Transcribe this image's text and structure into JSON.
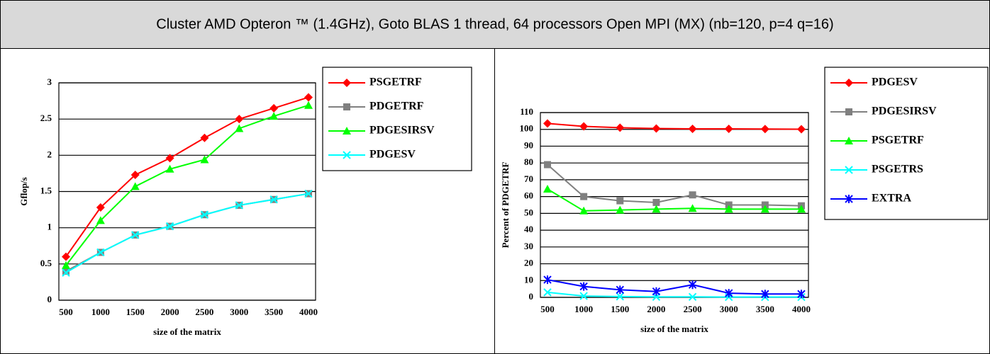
{
  "title": "Cluster AMD Opteron ™ (1.4GHz), Goto BLAS 1 thread, 64 processors Open MPI (MX) (nb=120, p=4 q=16)",
  "chart_data": [
    {
      "type": "line",
      "xlabel": "size of the matrix",
      "ylabel": "Gflop/s",
      "categories": [
        "500",
        "1000",
        "1500",
        "2000",
        "2500",
        "3000",
        "3500",
        "4000"
      ],
      "series": [
        {
          "name": "PSGETRF",
          "color": "#ff0000",
          "marker": "diamond",
          "values": [
            0.6,
            1.28,
            1.73,
            1.96,
            2.24,
            2.5,
            2.65,
            2.8
          ]
        },
        {
          "name": "PDGETRF",
          "color": "#808080",
          "marker": "square",
          "values": [
            0.4,
            0.66,
            0.9,
            1.02,
            1.18,
            1.31,
            1.39,
            1.47
          ]
        },
        {
          "name": "PDGESIRSV",
          "color": "#00ff00",
          "marker": "triangle",
          "values": [
            0.48,
            1.1,
            1.57,
            1.81,
            1.94,
            2.37,
            2.54,
            2.69
          ]
        },
        {
          "name": "PDGESV",
          "color": "#00ffff",
          "marker": "x",
          "values": [
            0.38,
            0.66,
            0.9,
            1.02,
            1.18,
            1.31,
            1.39,
            1.47
          ]
        }
      ],
      "ylim": [
        0,
        3
      ],
      "yticks": [
        0,
        0.5,
        1,
        1.5,
        2,
        2.5,
        3
      ],
      "grid": true,
      "legend": "right"
    },
    {
      "type": "line",
      "xlabel": "size of the matrix",
      "ylabel": "Percent of PDGETRF",
      "categories": [
        "500",
        "1000",
        "1500",
        "2000",
        "2500",
        "3000",
        "3500",
        "4000"
      ],
      "series": [
        {
          "name": "PDGESV",
          "color": "#ff0000",
          "marker": "diamond",
          "values": [
            103.5,
            101.8,
            101,
            100.5,
            100.3,
            100.3,
            100.2,
            100.1
          ]
        },
        {
          "name": "PDGESIRSV",
          "color": "#808080",
          "marker": "square",
          "values": [
            79,
            60,
            57.5,
            56.5,
            61,
            55,
            55,
            54.5
          ]
        },
        {
          "name": "PSGETRF",
          "color": "#00ff00",
          "marker": "triangle",
          "values": [
            64.5,
            51.5,
            52,
            52.5,
            53,
            52.5,
            52.5,
            52.5
          ]
        },
        {
          "name": "PSGETRS",
          "color": "#00ffff",
          "marker": "x",
          "values": [
            3,
            0.8,
            0.5,
            0.3,
            0.3,
            0.2,
            0.2,
            0.2
          ]
        },
        {
          "name": "EXTRA",
          "color": "#0000ff",
          "marker": "asterisk",
          "values": [
            10.5,
            6.5,
            4.5,
            3.5,
            7.5,
            2.5,
            2,
            2
          ]
        }
      ],
      "ylim": [
        0,
        110
      ],
      "yticks": [
        0,
        10,
        20,
        30,
        40,
        50,
        60,
        70,
        80,
        90,
        100,
        110
      ],
      "grid": true,
      "legend": "right"
    }
  ]
}
